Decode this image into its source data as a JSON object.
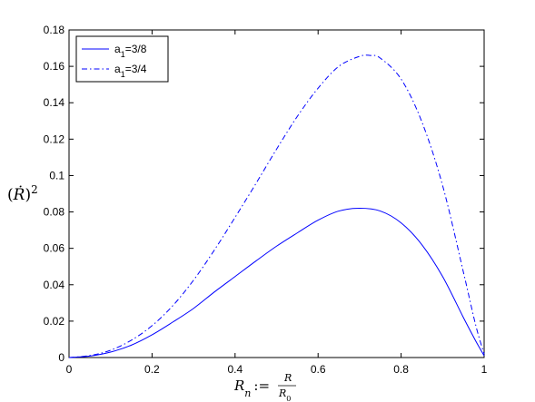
{
  "chart_data": {
    "type": "line",
    "title": "",
    "xlabel": "R_n := R/R_0",
    "ylabel": "(Ṙ)^2",
    "xlim": [
      0,
      1
    ],
    "ylim": [
      0,
      0.18
    ],
    "x_ticks": [
      "0",
      "0.2",
      "0.4",
      "0.6",
      "0.8",
      "1"
    ],
    "y_ticks": [
      "0",
      "0.02",
      "0.04",
      "0.06",
      "0.08",
      "0.1",
      "0.12",
      "0.14",
      "0.16",
      "0.18"
    ],
    "grid": false,
    "legend_position": "top-left",
    "series": [
      {
        "name": "a_1=3/8",
        "color": "#0000ff",
        "style": "solid",
        "x": [
          0,
          0.05,
          0.1,
          0.15,
          0.2,
          0.25,
          0.3,
          0.35,
          0.4,
          0.45,
          0.5,
          0.55,
          0.6,
          0.65,
          0.7,
          0.75,
          0.8,
          0.85,
          0.9,
          0.95,
          0.98,
          1
        ],
        "y": [
          0,
          0.0008,
          0.003,
          0.0068,
          0.0125,
          0.0195,
          0.027,
          0.036,
          0.0445,
          0.053,
          0.0612,
          0.0685,
          0.0755,
          0.0805,
          0.082,
          0.0805,
          0.074,
          0.062,
          0.0445,
          0.022,
          0.009,
          0.001
        ]
      },
      {
        "name": "a_1=3/4",
        "color": "#0000ff",
        "style": "dashdot",
        "x": [
          0,
          0.05,
          0.1,
          0.15,
          0.2,
          0.25,
          0.3,
          0.35,
          0.4,
          0.45,
          0.5,
          0.55,
          0.6,
          0.65,
          0.7,
          0.725,
          0.75,
          0.8,
          0.85,
          0.9,
          0.95,
          0.98,
          1
        ],
        "y": [
          0,
          0.0011,
          0.004,
          0.0095,
          0.0175,
          0.0285,
          0.0425,
          0.059,
          0.077,
          0.0955,
          0.1145,
          0.1325,
          0.148,
          0.16,
          0.1655,
          0.166,
          0.1645,
          0.153,
          0.1295,
          0.0945,
          0.047,
          0.0175,
          0.002
        ]
      }
    ]
  }
}
